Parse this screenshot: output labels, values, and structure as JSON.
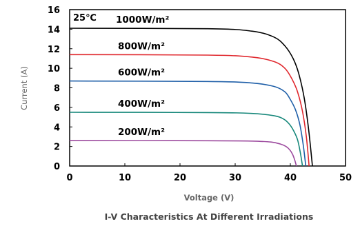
{
  "chart_data": {
    "type": "line",
    "title": "I-V Characteristics At Different Irradiations",
    "xlabel": "Voltage  (V)",
    "ylabel": "Current (A)",
    "xlim": [
      0,
      50
    ],
    "ylim": [
      0,
      16
    ],
    "xticks": [
      "0",
      "10",
      "20",
      "30",
      "40",
      "50"
    ],
    "yticks": [
      "0",
      "2",
      "4",
      "6",
      "8",
      "10",
      "12",
      "14",
      "16"
    ],
    "annotation": "25℃",
    "grid": false,
    "legend": "inline labels above curves",
    "series": [
      {
        "name": "1000W/m²",
        "color": "#000000",
        "x": [
          0,
          25,
          33,
          37,
          39,
          40.5,
          41.5,
          42.5,
          43.3,
          44.0
        ],
        "y": [
          14.1,
          14.05,
          13.8,
          13.2,
          12.3,
          11.0,
          9.5,
          7.0,
          3.8,
          0
        ]
      },
      {
        "name": "800W/m²",
        "color": "#e0282e",
        "x": [
          0,
          25,
          33,
          37,
          39,
          40.3,
          41.3,
          42.2,
          42.9,
          43.4
        ],
        "y": [
          11.4,
          11.35,
          11.15,
          10.7,
          10.0,
          8.9,
          7.6,
          5.6,
          3.0,
          0
        ]
      },
      {
        "name": "600W/m²",
        "color": "#1f5fa8",
        "x": [
          0,
          25,
          33,
          37,
          39,
          40.0,
          40.9,
          41.7,
          42.3,
          42.8
        ],
        "y": [
          8.7,
          8.65,
          8.5,
          8.15,
          7.6,
          6.8,
          5.8,
          4.3,
          2.3,
          0
        ]
      },
      {
        "name": "400W/m²",
        "color": "#16877a",
        "x": [
          0,
          25,
          33,
          37,
          38.8,
          39.8,
          40.6,
          41.3,
          41.8,
          42.2
        ],
        "y": [
          5.5,
          5.47,
          5.38,
          5.15,
          4.8,
          4.3,
          3.6,
          2.7,
          1.4,
          0
        ]
      },
      {
        "name": "200W/m²",
        "color": "#9c4a9e",
        "x": [
          0,
          25,
          33,
          36.5,
          38.2,
          39.2,
          39.9,
          40.4,
          40.8,
          41.1
        ],
        "y": [
          2.6,
          2.59,
          2.55,
          2.45,
          2.25,
          2.0,
          1.65,
          1.2,
          0.6,
          0
        ]
      }
    ]
  }
}
